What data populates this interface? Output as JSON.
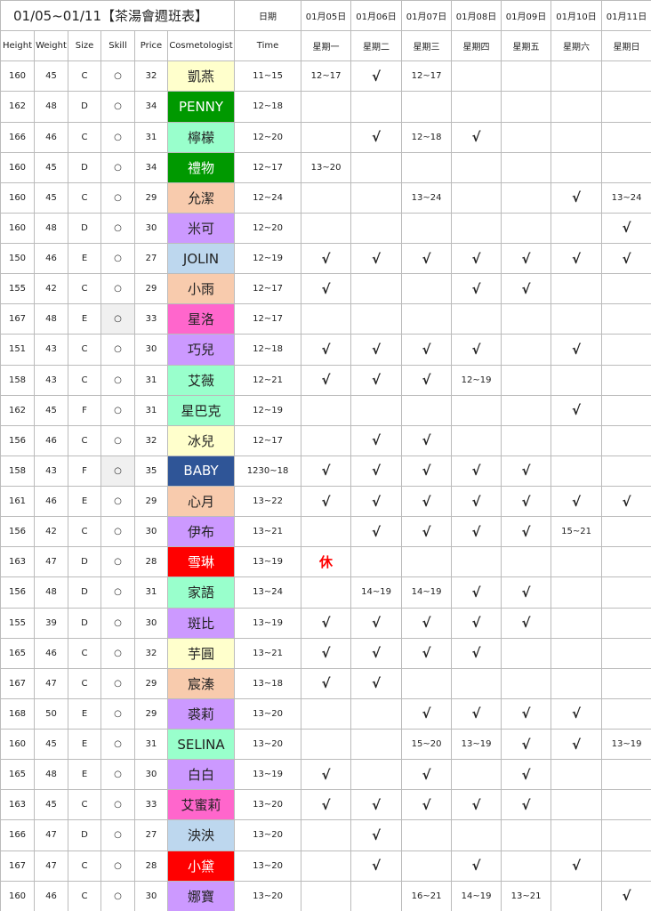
{
  "header": {
    "title": "01/05~01/11【茶湯會週班表】",
    "date_label": "日期",
    "dates": [
      "01月05日",
      "01月06日",
      "01月07日",
      "01月08日",
      "01月09日",
      "01月10日",
      "01月11日"
    ],
    "columns": [
      "Height",
      "Weight",
      "Size",
      "Skill",
      "Price",
      "Cosmetologist",
      "Time"
    ],
    "weekdays": [
      "星期一",
      "星期二",
      "星期三",
      "星期四",
      "星期五",
      "星期六",
      "星期日"
    ]
  },
  "rows": [
    {
      "cells": [
        160,
        45,
        "C",
        "○",
        32,
        "凱燕",
        "11~15",
        "12~17",
        "√",
        "12~17",
        null,
        null,
        null,
        null
      ],
      "name_fill": "#ffffcc"
    },
    {
      "cells": [
        162,
        48,
        "D",
        "○",
        34,
        "PENNY",
        "12~18",
        null,
        null,
        null,
        null,
        null,
        null,
        null
      ],
      "name_fill": "#009900",
      "name_color": "#ffffff"
    },
    {
      "cells": [
        166,
        46,
        "C",
        "○",
        31,
        "檸檬",
        "12~20",
        null,
        "√",
        "12~18",
        "√",
        null,
        null,
        null
      ],
      "name_fill": "#99ffcc"
    },
    {
      "cells": [
        160,
        45,
        "D",
        "○",
        34,
        "禮物",
        "12~17",
        "13~20",
        null,
        null,
        null,
        null,
        null,
        null
      ],
      "name_fill": "#009900",
      "name_color": "#ffffff"
    },
    {
      "cells": [
        160,
        45,
        "C",
        "○",
        29,
        "允潔",
        "12~24",
        null,
        null,
        "13~24",
        null,
        null,
        "√",
        "13~24"
      ],
      "name_fill": "#f8cbad"
    },
    {
      "cells": [
        160,
        48,
        "D",
        "○",
        30,
        "米可",
        "12~20",
        null,
        null,
        null,
        null,
        null,
        null,
        "√"
      ],
      "name_fill": "#cc99ff"
    },
    {
      "cells": [
        150,
        46,
        "E",
        "○",
        27,
        "JOLIN",
        "12~19",
        "√",
        "√",
        "√",
        "√",
        "√",
        "√",
        "√"
      ],
      "name_fill": "#bdd7ee"
    },
    {
      "cells": [
        155,
        42,
        "C",
        "○",
        29,
        "小雨",
        "12~17",
        "√",
        null,
        null,
        "√",
        "√",
        null,
        null
      ],
      "name_fill": "#f8cbad"
    },
    {
      "cells": [
        167,
        48,
        "E",
        "○",
        33,
        "星洛",
        "12~17",
        null,
        null,
        null,
        null,
        null,
        null,
        null
      ],
      "name_fill": "#ff66cc",
      "skill_fill": "#f0f0f0"
    },
    {
      "cells": [
        151,
        43,
        "C",
        "○",
        30,
        "巧兒",
        "12~18",
        "√",
        "√",
        "√",
        "√",
        null,
        "√",
        null
      ],
      "name_fill": "#cc99ff"
    },
    {
      "cells": [
        158,
        43,
        "C",
        "○",
        31,
        "艾薇",
        "12~21",
        "√",
        "√",
        "√",
        "12~19",
        null,
        null,
        null
      ],
      "name_fill": "#99ffcc"
    },
    {
      "cells": [
        162,
        45,
        "F",
        "○",
        31,
        "星巴克",
        "12~19",
        null,
        null,
        null,
        null,
        null,
        "√",
        null
      ],
      "name_fill": "#99ffcc"
    },
    {
      "cells": [
        156,
        46,
        "C",
        "○",
        32,
        "冰兒",
        "12~17",
        null,
        "√",
        "√",
        null,
        null,
        null,
        null
      ],
      "name_fill": "#ffffcc"
    },
    {
      "cells": [
        158,
        43,
        "F",
        "○",
        35,
        "BABY",
        "1230~18",
        "√",
        "√",
        "√",
        "√",
        "√",
        null,
        null
      ],
      "name_fill": "#2f5597",
      "name_color": "#ffffff",
      "skill_fill": "#f0f0f0"
    },
    {
      "cells": [
        161,
        46,
        "E",
        "○",
        29,
        "心月",
        "13~22",
        "√",
        "√",
        "√",
        "√",
        "√",
        "√",
        "√"
      ],
      "name_fill": "#f8cbad"
    },
    {
      "cells": [
        156,
        42,
        "C",
        "○",
        30,
        "伊布",
        "13~21",
        null,
        "√",
        "√",
        "√",
        "√",
        "15~21",
        null
      ],
      "name_fill": "#cc99ff"
    },
    {
      "cells": [
        163,
        47,
        "D",
        "○",
        28,
        "雪琳",
        "13~19",
        "休",
        null,
        null,
        null,
        null,
        null,
        null
      ],
      "name_fill": "#ff0000",
      "name_color": "#ffffff",
      "day_color": "#ff0000"
    },
    {
      "cells": [
        156,
        48,
        "D",
        "○",
        31,
        "家語",
        "13~24",
        null,
        "14~19",
        "14~19",
        "√",
        "√",
        null,
        null
      ],
      "name_fill": "#99ffcc"
    },
    {
      "cells": [
        155,
        39,
        "D",
        "○",
        30,
        "斑比",
        "13~19",
        "√",
        "√",
        "√",
        "√",
        "√",
        null,
        null
      ],
      "name_fill": "#cc99ff"
    },
    {
      "cells": [
        165,
        46,
        "C",
        "○",
        32,
        "芋圓",
        "13~21",
        "√",
        "√",
        "√",
        "√",
        null,
        null,
        null
      ],
      "name_fill": "#ffffcc"
    },
    {
      "cells": [
        167,
        47,
        "C",
        "○",
        29,
        "宸溱",
        "13~18",
        "√",
        "√",
        null,
        null,
        null,
        null,
        null
      ],
      "name_fill": "#f8cbad"
    },
    {
      "cells": [
        168,
        50,
        "E",
        "○",
        29,
        "裘莉",
        "13~20",
        null,
        null,
        "√",
        "√",
        "√",
        "√",
        null
      ],
      "name_fill": "#cc99ff"
    },
    {
      "cells": [
        160,
        45,
        "E",
        "○",
        31,
        "SELINA",
        "13~20",
        null,
        null,
        "15~20",
        "13~19",
        "√",
        "√",
        "13~19"
      ],
      "name_fill": "#99ffcc"
    },
    {
      "cells": [
        165,
        48,
        "E",
        "○",
        30,
        "白白",
        "13~19",
        "√",
        null,
        "√",
        null,
        "√",
        null,
        null
      ],
      "name_fill": "#cc99ff"
    },
    {
      "cells": [
        163,
        45,
        "C",
        "○",
        33,
        "艾蜜莉",
        "13~20",
        "√",
        "√",
        "√",
        "√",
        "√",
        null,
        null
      ],
      "name_fill": "#ff66cc"
    },
    {
      "cells": [
        166,
        47,
        "D",
        "○",
        27,
        "泱泱",
        "13~20",
        null,
        "√",
        null,
        null,
        null,
        null,
        null
      ],
      "name_fill": "#bdd7ee"
    },
    {
      "cells": [
        167,
        47,
        "C",
        "○",
        28,
        "小黛",
        "13~20",
        null,
        "√",
        null,
        "√",
        null,
        "√",
        null
      ],
      "name_fill": "#ff0000",
      "name_color": "#ffffff"
    },
    {
      "cells": [
        160,
        46,
        "C",
        "○",
        30,
        "娜寶",
        "13~20",
        null,
        null,
        "16~21",
        "14~19",
        "13~21",
        null,
        "√"
      ],
      "name_fill": "#cc99ff"
    }
  ]
}
